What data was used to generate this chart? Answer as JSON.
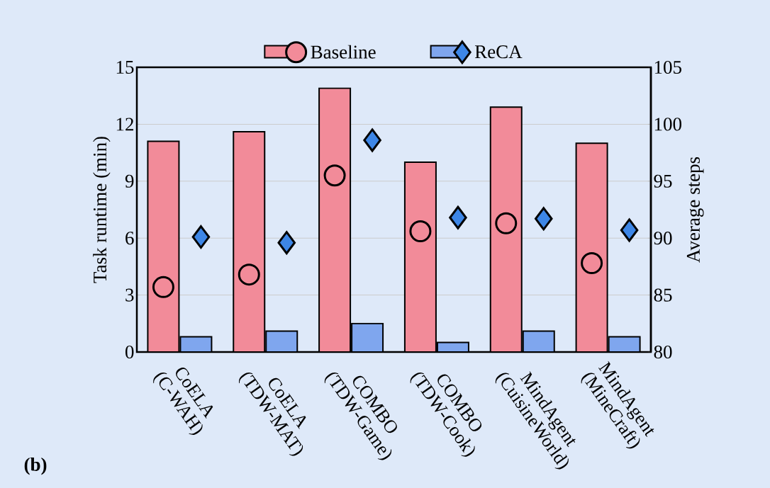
{
  "chart_data": {
    "type": "bar",
    "categories": [
      "CoELA (C-WAH)",
      "CoELA (TDW-MAT)",
      "COMBO (TDW-Game)",
      "COMBO (TDW-Cook)",
      "MindAgent (CuisineWorld)",
      "MindAgent (MineCraft)"
    ],
    "series": [
      {
        "color": "#f28b99",
        "values": [
          11.1,
          11.6,
          13.9,
          10.0,
          12.9,
          11.0
        ]
      },
      {
        "color": "#7fa6ee",
        "values": [
          0.8,
          1.1,
          1.5,
          0.5,
          1.1,
          0.8
        ]
      },
      {
        "name": "Baseline",
        "type": "scatter",
        "marker": "circle",
        "axis": "y2",
        "color": "#f28b99",
        "values": [
          85.7,
          86.8,
          95.5,
          90.6,
          91.3,
          87.8
        ]
      },
      {
        "name": "ReCA",
        "type": "scatter",
        "marker": "diamond",
        "axis": "y2",
        "color": "#3d86e6",
        "values": [
          90.1,
          89.6,
          98.6,
          91.8,
          91.7,
          90.7
        ]
      }
    ],
    "ylabel": "Task runtime (min)",
    "y2label": "Average steps",
    "ylim": [
      0,
      15
    ],
    "yticks": [
      0,
      3,
      6,
      9,
      12,
      15
    ],
    "y2lim": [
      80,
      105
    ],
    "y2ticks": [
      80,
      85,
      90,
      95,
      100,
      105
    ],
    "grid": "y",
    "legend": "top",
    "annotations": [
      "(b)"
    ]
  }
}
